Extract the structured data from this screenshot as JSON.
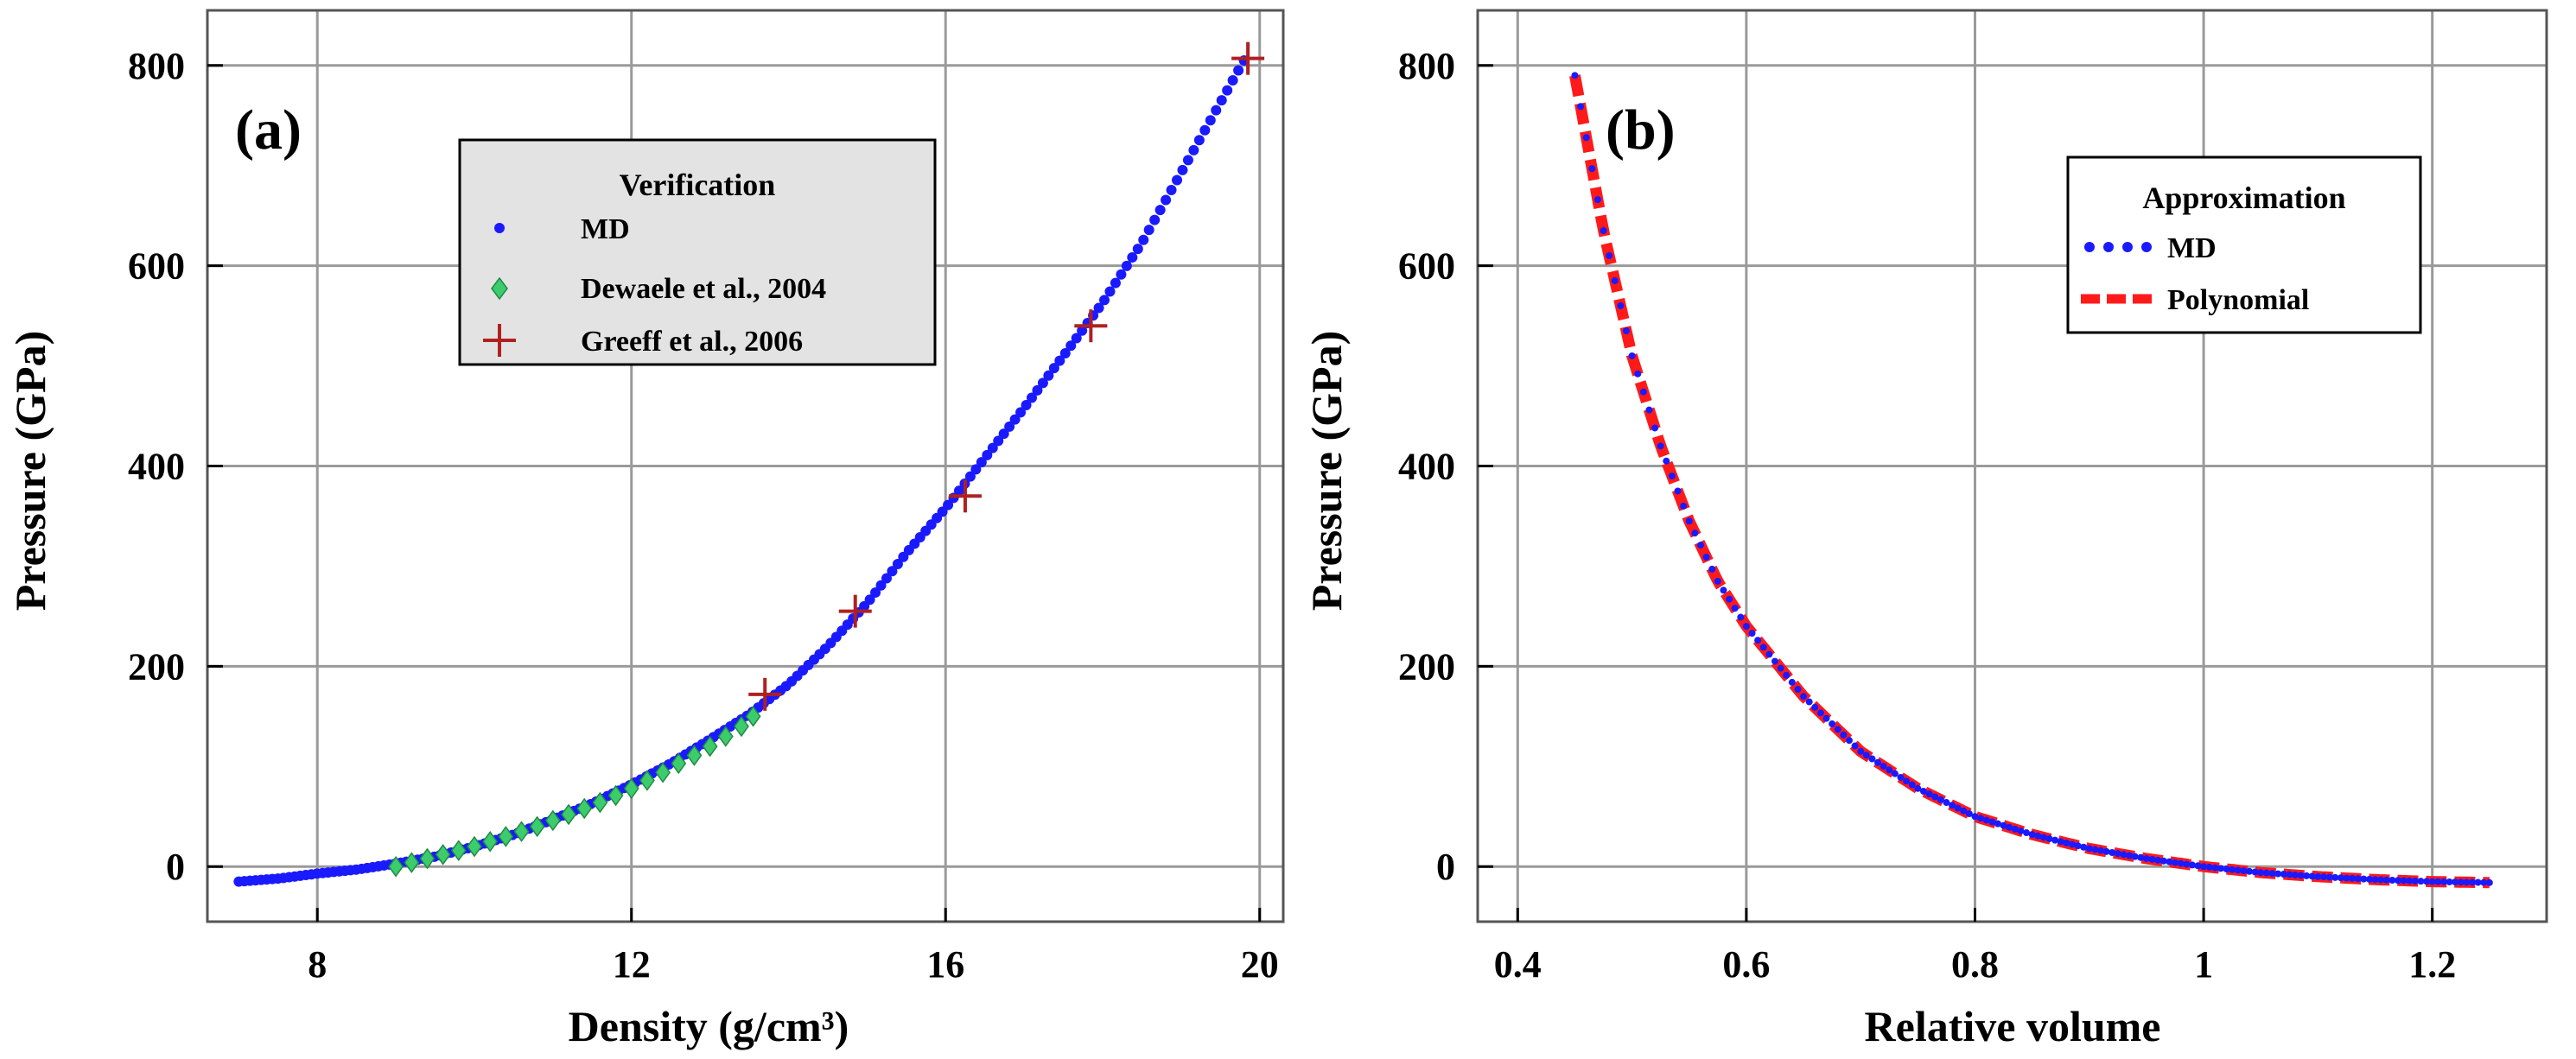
{
  "chart_data": [
    {
      "type": "scatter",
      "panel_label": "(a)",
      "xlabel": "Density (g/cm³)",
      "ylabel": "Pressure (GPa)",
      "xlim": [
        6.6,
        20.3
      ],
      "ylim": [
        -55,
        855
      ],
      "xticks": [
        8,
        12,
        16,
        20
      ],
      "xtick_labels": [
        "8",
        "12",
        "16",
        "20"
      ],
      "yticks": [
        0,
        200,
        400,
        600,
        800
      ],
      "ytick_labels": [
        "0",
        "200",
        "400",
        "600",
        "800"
      ],
      "grid": true,
      "legend": {
        "title": "Verification",
        "placement": "top-center",
        "entries": [
          "MD",
          "Dewaele et al., 2004",
          "Greeff et al., 2006"
        ]
      },
      "series": [
        {
          "name": "MD",
          "marker": "dot",
          "color": "#1a1aff",
          "x": [
            7.0,
            7.5,
            8.0,
            8.5,
            9.0,
            9.5,
            10.0,
            10.5,
            11.0,
            11.5,
            12.0,
            12.5,
            13.0,
            13.5,
            14.0,
            14.5,
            15.0,
            15.5,
            16.0,
            16.5,
            17.0,
            17.5,
            18.0,
            18.5,
            19.0,
            19.5,
            19.8
          ],
          "y": [
            -15,
            -12,
            -7,
            -3,
            3,
            10,
            20,
            32,
            47,
            63,
            82,
            103,
            127,
            152,
            182,
            220,
            263,
            313,
            358,
            408,
            458,
            510,
            563,
            623,
            693,
            763,
            805
          ]
        },
        {
          "name": "Dewaele et al., 2004",
          "marker": "diamond",
          "color": "#3ccc6c",
          "x": [
            9.0,
            9.2,
            9.4,
            9.6,
            9.8,
            10.0,
            10.2,
            10.4,
            10.6,
            10.8,
            11.0,
            11.2,
            11.4,
            11.6,
            11.8,
            12.0,
            12.2,
            12.4,
            12.6,
            12.8,
            13.0,
            13.2,
            13.4,
            13.55
          ],
          "y": [
            0,
            4,
            8,
            12,
            16,
            20,
            25,
            30,
            35,
            40,
            46,
            52,
            58,
            64,
            71,
            78,
            86,
            94,
            103,
            111,
            120,
            130,
            140,
            150
          ]
        },
        {
          "name": "Greeff et al., 2006",
          "marker": "plus",
          "color": "#b02020",
          "x": [
            13.7,
            14.85,
            16.25,
            17.85,
            19.85
          ],
          "y": [
            172,
            255,
            370,
            540,
            807
          ]
        }
      ]
    },
    {
      "type": "line",
      "panel_label": "(b)",
      "xlabel": "Relative volume",
      "ylabel": "Pressure (GPa)",
      "xlim": [
        0.365,
        1.3
      ],
      "ylim": [
        -55,
        855
      ],
      "xticks": [
        0.4,
        0.6,
        0.8,
        1.0,
        1.2
      ],
      "xtick_labels": [
        "0.4",
        "0.6",
        "0.8",
        "1",
        "1.2"
      ],
      "yticks": [
        0,
        200,
        400,
        600,
        800
      ],
      "ytick_labels": [
        "0",
        "200",
        "400",
        "600",
        "800"
      ],
      "grid": true,
      "legend": {
        "title": "Approximation",
        "placement": "top-right",
        "entries": [
          "MD",
          "Polynomial"
        ]
      },
      "x": [
        0.45,
        0.475,
        0.5,
        0.525,
        0.55,
        0.575,
        0.6,
        0.65,
        0.7,
        0.75,
        0.8,
        0.85,
        0.9,
        0.95,
        1.0,
        1.05,
        1.1,
        1.15,
        1.2,
        1.25
      ],
      "series": [
        {
          "name": "MD",
          "style": "dotted",
          "color": "#1a1aff",
          "values": [
            790,
            635,
            510,
            420,
            345,
            285,
            240,
            170,
            115,
            78,
            50,
            32,
            18,
            8,
            0,
            -6,
            -10,
            -13,
            -15,
            -16
          ]
        },
        {
          "name": "Polynomial",
          "style": "dashed",
          "color": "#ff1a1a",
          "values": [
            790,
            635,
            510,
            420,
            345,
            285,
            240,
            170,
            115,
            78,
            50,
            32,
            18,
            8,
            0,
            -6,
            -10,
            -13,
            -15,
            -16
          ]
        }
      ]
    }
  ]
}
